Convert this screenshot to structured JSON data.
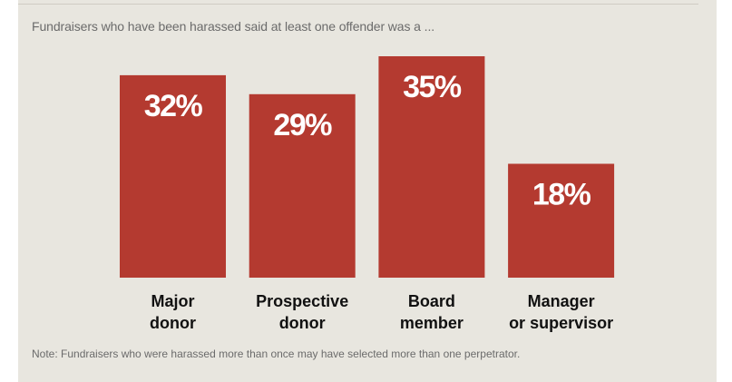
{
  "chart_data": {
    "type": "bar",
    "title": "Fundraisers who have been harassed said at least one offender was a ...",
    "categories": [
      [
        "Major",
        "donor"
      ],
      [
        "Prospective",
        "donor"
      ],
      [
        "Board",
        "member"
      ],
      [
        "Manager",
        "or supervisor"
      ]
    ],
    "values": [
      32,
      29,
      35,
      18
    ],
    "value_labels": [
      "32%",
      "29%",
      "35%",
      "18%"
    ],
    "unit": "%",
    "xlabel": "",
    "ylabel": "",
    "ylim": [
      0,
      35
    ],
    "grid": false,
    "bar_color": "#b43a30",
    "note": "Note: Fundraisers who were harassed more than once may have selected more than one perpetrator."
  }
}
